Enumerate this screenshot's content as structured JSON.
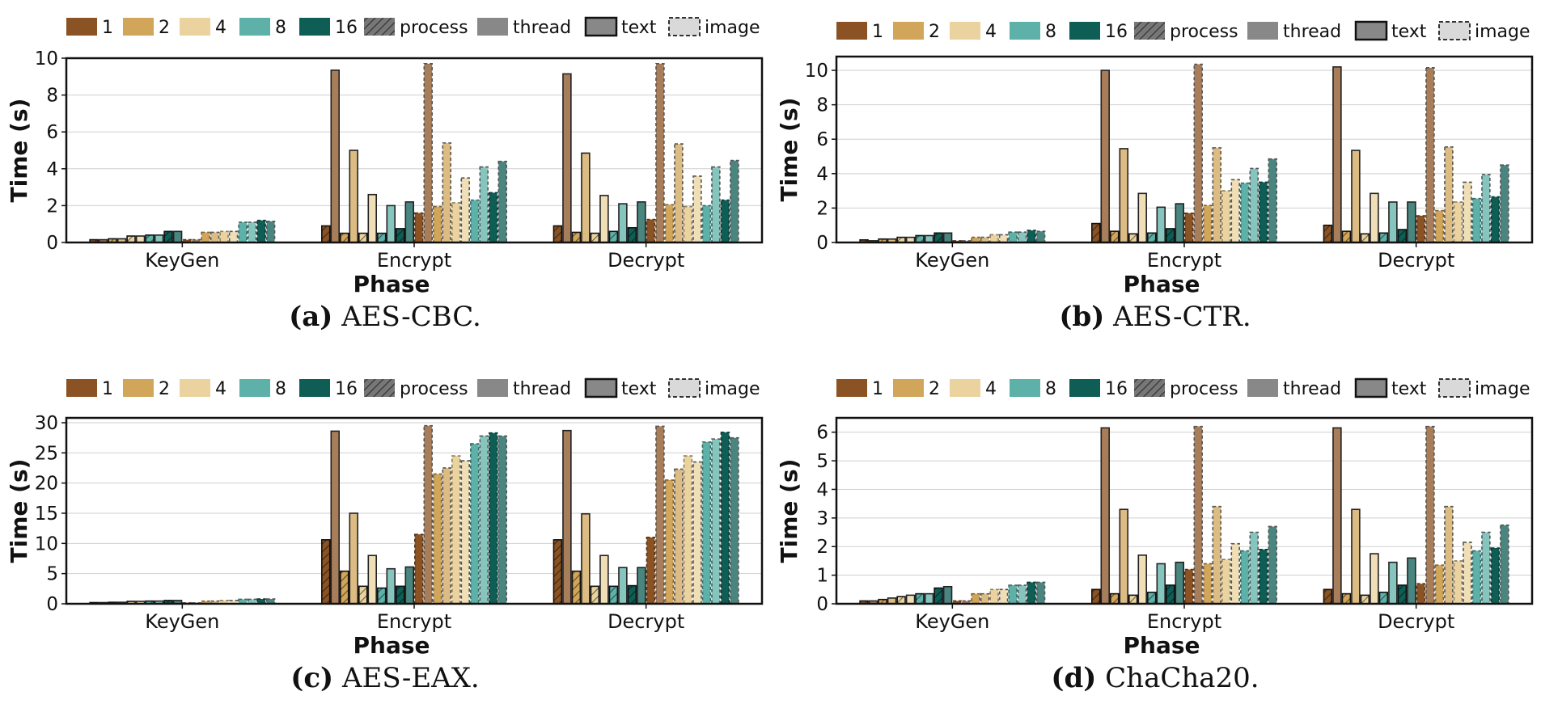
{
  "legend": [
    {
      "label": "1",
      "color": "#8b5323"
    },
    {
      "label": "2",
      "color": "#d1a55a"
    },
    {
      "label": "4",
      "color": "#ead39e"
    },
    {
      "label": "8",
      "color": "#5db1a8"
    },
    {
      "label": "16",
      "color": "#0e5e56"
    },
    {
      "label": "process",
      "color": "#666666"
    },
    {
      "label": "thread",
      "color": "#888888"
    },
    {
      "label": "text",
      "color": "#888888"
    },
    {
      "label": "image",
      "color": "#d9d9d9"
    }
  ],
  "chart_data": [
    {
      "type": "bar",
      "caption_tag": "(a)",
      "caption_text": "AES-CBC.",
      "xlabel": "Phase",
      "ylabel": "Time (s)",
      "ylim": [
        0,
        10
      ],
      "yticks": [
        "0",
        "2",
        "4",
        "6",
        "8",
        "10"
      ],
      "categories": [
        "KeyGen",
        "Encrypt",
        "Decrypt"
      ],
      "bars": [
        [
          0.15,
          0.15,
          0.2,
          0.2,
          0.35,
          0.35,
          0.4,
          0.4,
          0.6,
          0.6,
          0.15,
          0.15,
          0.55,
          0.55,
          0.6,
          0.6,
          1.1,
          1.1,
          1.2,
          1.15
        ],
        [
          0.9,
          9.35,
          0.5,
          5.0,
          0.5,
          2.6,
          0.5,
          2.0,
          0.75,
          2.2,
          1.6,
          9.7,
          1.95,
          5.4,
          2.15,
          3.5,
          2.3,
          4.1,
          2.7,
          4.4
        ],
        [
          0.9,
          9.15,
          0.55,
          4.85,
          0.5,
          2.55,
          0.6,
          2.1,
          0.8,
          2.2,
          1.25,
          9.7,
          2.05,
          5.35,
          1.95,
          3.6,
          2.0,
          4.1,
          2.3,
          4.45
        ]
      ]
    },
    {
      "type": "bar",
      "caption_tag": "(b)",
      "caption_text": "AES-CTR.",
      "xlabel": "Phase",
      "ylabel": "Time (s)",
      "ylim": [
        0,
        10.8
      ],
      "yticks": [
        "0",
        "2",
        "4",
        "6",
        "8",
        "10"
      ],
      "categories": [
        "KeyGen",
        "Encrypt",
        "Decrypt"
      ],
      "bars": [
        [
          0.15,
          0.1,
          0.2,
          0.2,
          0.3,
          0.3,
          0.4,
          0.4,
          0.55,
          0.55,
          0.1,
          0.1,
          0.3,
          0.3,
          0.45,
          0.45,
          0.6,
          0.6,
          0.7,
          0.65
        ],
        [
          1.1,
          10.0,
          0.65,
          5.45,
          0.5,
          2.85,
          0.55,
          2.05,
          0.8,
          2.25,
          1.7,
          10.35,
          2.15,
          5.5,
          3.0,
          3.65,
          3.45,
          4.3,
          3.5,
          4.85
        ],
        [
          1.0,
          10.2,
          0.65,
          5.35,
          0.5,
          2.85,
          0.55,
          2.35,
          0.75,
          2.35,
          1.55,
          10.15,
          1.85,
          5.55,
          2.35,
          3.5,
          2.55,
          3.95,
          2.65,
          4.5
        ]
      ]
    },
    {
      "type": "bar",
      "caption_tag": "(c)",
      "caption_text": "AES-EAX.",
      "xlabel": "Phase",
      "ylabel": "Time (s)",
      "ylim": [
        0,
        30.8
      ],
      "yticks": [
        "0",
        "5",
        "10",
        "15",
        "20",
        "25",
        "30"
      ],
      "categories": [
        "KeyGen",
        "Encrypt",
        "Decrypt"
      ],
      "bars": [
        [
          0.2,
          0.2,
          0.25,
          0.25,
          0.4,
          0.4,
          0.45,
          0.45,
          0.55,
          0.55,
          0.15,
          0.15,
          0.45,
          0.45,
          0.55,
          0.55,
          0.75,
          0.75,
          0.8,
          0.8
        ],
        [
          10.6,
          28.6,
          5.4,
          15.0,
          2.9,
          8.0,
          2.6,
          5.8,
          2.9,
          6.1,
          11.5,
          29.5,
          21.5,
          22.5,
          24.5,
          23.7,
          26.5,
          27.8,
          28.3,
          27.8
        ],
        [
          10.6,
          28.7,
          5.4,
          14.9,
          2.9,
          8.0,
          2.9,
          6.0,
          3.0,
          6.0,
          11.0,
          29.4,
          20.5,
          22.3,
          24.5,
          23.5,
          26.8,
          27.3,
          28.4,
          27.5
        ]
      ]
    },
    {
      "type": "bar",
      "caption_tag": "(d)",
      "caption_text": "ChaCha20.",
      "xlabel": "Phase",
      "ylabel": "Time (s)",
      "ylim": [
        0,
        6.5
      ],
      "yticks": [
        "0",
        "1",
        "2",
        "3",
        "4",
        "5",
        "6"
      ],
      "categories": [
        "KeyGen",
        "Encrypt",
        "Decrypt"
      ],
      "bars": [
        [
          0.1,
          0.1,
          0.15,
          0.2,
          0.25,
          0.3,
          0.35,
          0.35,
          0.55,
          0.6,
          0.1,
          0.1,
          0.35,
          0.35,
          0.5,
          0.5,
          0.65,
          0.65,
          0.75,
          0.75
        ],
        [
          0.5,
          6.15,
          0.35,
          3.3,
          0.3,
          1.7,
          0.4,
          1.4,
          0.65,
          1.45,
          1.2,
          6.2,
          1.4,
          3.4,
          1.55,
          2.1,
          1.85,
          2.5,
          1.9,
          2.7
        ],
        [
          0.5,
          6.15,
          0.35,
          3.3,
          0.3,
          1.75,
          0.4,
          1.45,
          0.65,
          1.6,
          0.7,
          6.2,
          1.35,
          3.4,
          1.5,
          2.15,
          1.85,
          2.5,
          1.95,
          2.75
        ]
      ]
    }
  ]
}
